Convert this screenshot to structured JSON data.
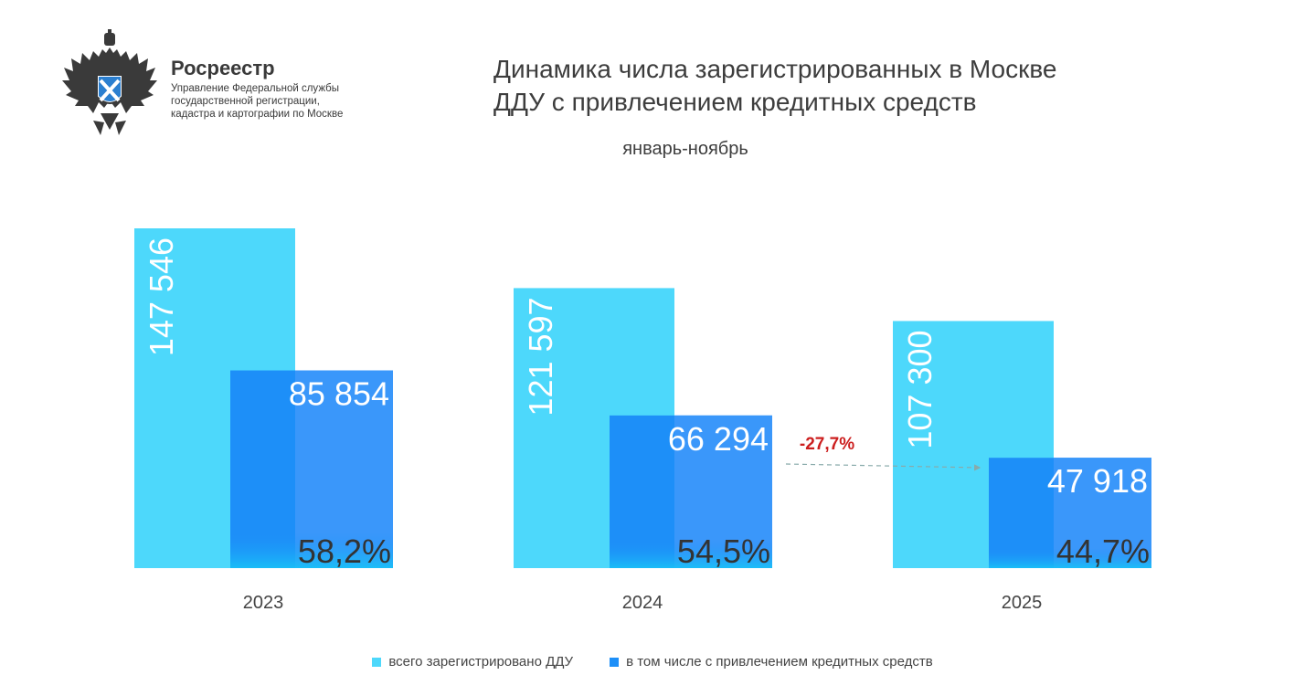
{
  "header": {
    "org_name": "Росреестр",
    "org_desc": [
      "Управление Федеральной службы",
      "государственной регистрации,",
      "кадастра и картографии по Москве"
    ],
    "logo_icon": "double-headed-eagle-emblem-icon"
  },
  "colors": {
    "total": "#4dd8fb",
    "credit": "#1d8ff8",
    "overlap": "#3a97fa",
    "delta": "#cc1f1f"
  },
  "chart_data": {
    "type": "bar",
    "title": [
      "Динамика числа зарегистрированных в Москве",
      "ДДУ с привлечением кредитных средств"
    ],
    "subtitle": "январь-ноябрь",
    "categories": [
      "2023",
      "2024",
      "2025"
    ],
    "series": [
      {
        "name": "всего зарегистрировано ДДУ",
        "values": [
          147546,
          121597,
          107300
        ],
        "labels": [
          "147 546",
          "121 597",
          "107 300"
        ]
      },
      {
        "name": "в том числе с привлечением кредитных средств",
        "values": [
          85854,
          66294,
          47918
        ],
        "labels": [
          "85 854",
          "66 294",
          "47 918"
        ]
      }
    ],
    "share_labels": [
      "58,2%",
      "54,5%",
      "44,7%"
    ],
    "annotation": {
      "text": "-27,7%",
      "from": "2024",
      "to": "2025"
    },
    "ylim": [
      0,
      147546
    ],
    "grid": false,
    "legend": "bottom"
  }
}
